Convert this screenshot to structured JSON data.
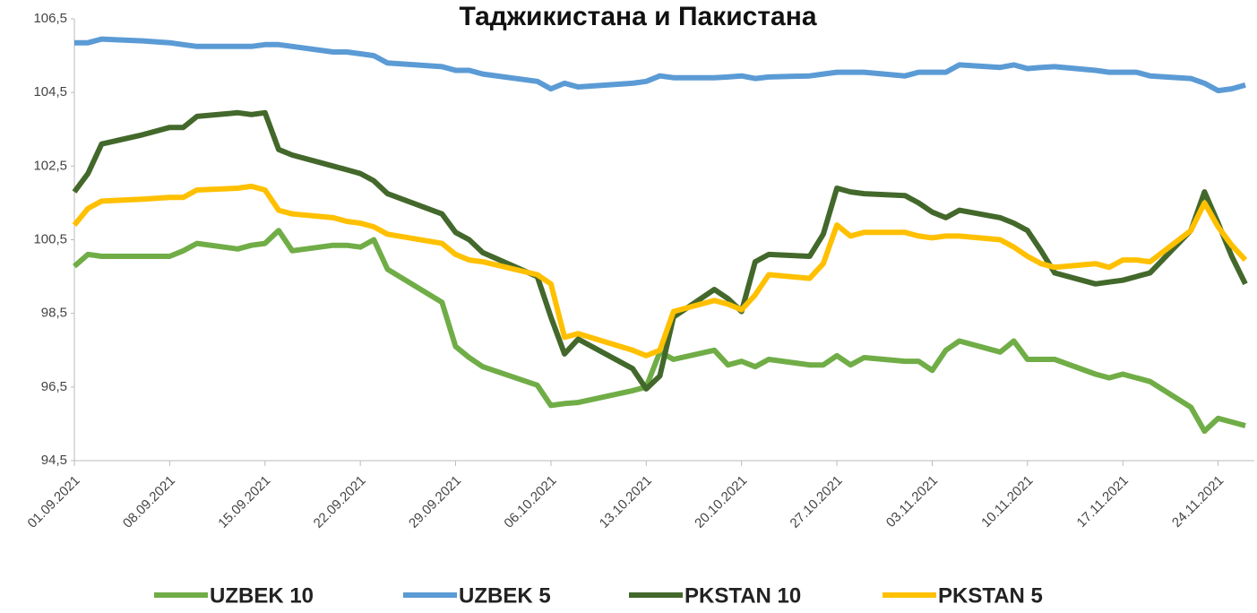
{
  "chart_data": {
    "type": "line",
    "title": "Таджикистана и Пакистана",
    "x": [
      "01.09.2021",
      "02.09.2021",
      "03.09.2021",
      "06.09.2021",
      "08.09.2021",
      "09.09.2021",
      "10.09.2021",
      "13.09.2021",
      "14.09.2021",
      "15.09.2021",
      "16.09.2021",
      "17.09.2021",
      "20.09.2021",
      "21.09.2021",
      "22.09.2021",
      "23.09.2021",
      "24.09.2021",
      "28.09.2021",
      "29.09.2021",
      "30.09.2021",
      "01.10.2021",
      "05.10.2021",
      "06.10.2021",
      "07.10.2021",
      "08.10.2021",
      "12.10.2021",
      "13.10.2021",
      "14.10.2021",
      "15.10.2021",
      "18.10.2021",
      "19.10.2021",
      "20.10.2021",
      "21.10.2021",
      "22.10.2021",
      "25.10.2021",
      "26.10.2021",
      "27.10.2021",
      "28.10.2021",
      "29.10.2021",
      "01.11.2021",
      "02.11.2021",
      "03.11.2021",
      "04.11.2021",
      "05.11.2021",
      "08.11.2021",
      "09.11.2021",
      "10.11.2021",
      "11.11.2021",
      "12.11.2021",
      "15.11.2021",
      "16.11.2021",
      "17.11.2021",
      "18.11.2021",
      "19.11.2021",
      "22.11.2021",
      "23.11.2021",
      "24.11.2021",
      "25.11.2021",
      "26.11.2021"
    ],
    "series": [
      {
        "name": "UZBEK 10",
        "color": "#70ad47",
        "values": [
          99.78,
          100.1,
          100.05,
          100.05,
          100.05,
          100.2,
          100.4,
          100.25,
          100.35,
          100.4,
          100.75,
          100.2,
          100.35,
          100.35,
          100.3,
          100.5,
          99.7,
          98.8,
          97.6,
          97.3,
          97.05,
          96.55,
          96.0,
          96.05,
          96.08,
          96.4,
          96.5,
          97.45,
          97.25,
          97.5,
          97.1,
          97.2,
          97.05,
          97.25,
          97.1,
          97.1,
          97.35,
          97.1,
          97.3,
          97.2,
          97.2,
          96.95,
          97.5,
          97.75,
          97.45,
          97.75,
          97.25,
          97.25,
          97.25,
          96.85,
          96.75,
          96.85,
          96.75,
          96.65,
          95.95,
          95.3,
          95.65,
          95.55,
          95.45
        ]
      },
      {
        "name": "UZBEK 5",
        "color": "#5b9bd5",
        "values": [
          105.85,
          105.85,
          105.95,
          105.9,
          105.85,
          105.8,
          105.75,
          105.75,
          105.75,
          105.8,
          105.8,
          105.75,
          105.6,
          105.6,
          105.55,
          105.5,
          105.3,
          105.2,
          105.1,
          105.1,
          105.0,
          104.8,
          104.6,
          104.75,
          104.65,
          104.75,
          104.8,
          104.95,
          104.9,
          104.9,
          104.92,
          104.95,
          104.88,
          104.92,
          104.95,
          105.0,
          105.05,
          105.05,
          105.05,
          104.95,
          105.05,
          105.05,
          105.05,
          105.25,
          105.18,
          105.25,
          105.15,
          105.18,
          105.2,
          105.1,
          105.05,
          105.05,
          105.05,
          104.95,
          104.88,
          104.75,
          104.55,
          104.6,
          104.7
        ]
      },
      {
        "name": "PKSTAN 10",
        "color": "#43682b",
        "values": [
          101.8,
          102.3,
          103.1,
          103.35,
          103.55,
          103.55,
          103.85,
          103.95,
          103.9,
          103.95,
          102.95,
          102.8,
          102.5,
          102.4,
          102.3,
          102.1,
          101.75,
          101.2,
          100.7,
          100.5,
          100.15,
          99.5,
          98.4,
          97.4,
          97.8,
          97.0,
          96.45,
          96.8,
          98.4,
          99.15,
          98.9,
          98.55,
          99.9,
          100.1,
          100.05,
          100.65,
          101.9,
          101.8,
          101.75,
          101.7,
          101.5,
          101.25,
          101.1,
          101.3,
          101.1,
          100.95,
          100.75,
          100.2,
          99.6,
          99.3,
          99.35,
          99.4,
          99.5,
          99.6,
          100.75,
          101.8,
          100.95,
          100.05,
          99.3
        ]
      },
      {
        "name": "PKSTAN 5",
        "color": "#ffc000",
        "values": [
          100.9,
          101.35,
          101.55,
          101.6,
          101.65,
          101.65,
          101.85,
          101.9,
          101.95,
          101.85,
          101.3,
          101.2,
          101.1,
          101.0,
          100.95,
          100.85,
          100.65,
          100.4,
          100.1,
          99.95,
          99.9,
          99.55,
          99.3,
          97.85,
          97.95,
          97.5,
          97.35,
          97.5,
          98.55,
          98.85,
          98.75,
          98.6,
          99.0,
          99.55,
          99.45,
          99.85,
          100.9,
          100.6,
          100.7,
          100.7,
          100.6,
          100.55,
          100.6,
          100.6,
          100.5,
          100.3,
          100.05,
          99.85,
          99.75,
          99.85,
          99.75,
          99.95,
          99.95,
          99.9,
          100.75,
          101.5,
          100.85,
          100.35,
          99.95
        ]
      }
    ],
    "xlim": [
      "01.09.2021",
      "26.11.2021"
    ],
    "xticks": [
      "01.09.2021",
      "08.09.2021",
      "15.09.2021",
      "22.09.2021",
      "29.09.2021",
      "06.10.2021",
      "13.10.2021",
      "20.10.2021",
      "27.10.2021",
      "03.11.2021",
      "10.11.2021",
      "17.11.2021",
      "24.11.2021"
    ],
    "ylim": [
      94.5,
      106.5
    ],
    "yticks": [
      {
        "value": 94.5,
        "label": "94,5"
      },
      {
        "value": 96.5,
        "label": "96,5"
      },
      {
        "value": 98.5,
        "label": "98,5"
      },
      {
        "value": 100.5,
        "label": "100,5"
      },
      {
        "value": 102.5,
        "label": "102,5"
      },
      {
        "value": 104.5,
        "label": "104,5"
      },
      {
        "value": 106.5,
        "label": "106,5"
      }
    ],
    "grid": false,
    "legend": "bottom"
  }
}
